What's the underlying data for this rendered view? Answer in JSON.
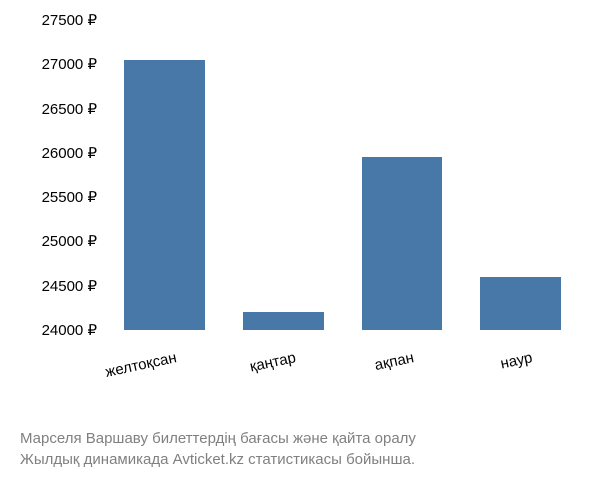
{
  "chart": {
    "type": "bar",
    "categories": [
      "желтоқсан",
      "қаңтар",
      "ақпан",
      "наур"
    ],
    "values": [
      27050,
      24200,
      25950,
      24600
    ],
    "bar_color": "#4878a7",
    "background_color": "#ffffff",
    "ylim_min": 24000,
    "ylim_max": 27500,
    "ytick_step": 500,
    "yticks": [
      24000,
      24500,
      25000,
      25500,
      26000,
      26500,
      27000,
      27500
    ],
    "ytick_labels": [
      "24000 ₽",
      "24500 ₽",
      "25000 ₽",
      "25500 ₽",
      "26000 ₽",
      "26500 ₽",
      "27000 ₽",
      "27500 ₽"
    ],
    "axis_fontsize": 15,
    "axis_color": "#000000",
    "xlabel_rotation": -12,
    "bar_width_ratio": 0.68
  },
  "caption": {
    "line1": "Марселя Варшаву билеттердің бағасы және қайта оралу",
    "line2": "Жылдық динамикада Avticket.kz статистикасы бойынша.",
    "color": "#808080",
    "fontsize": 15
  }
}
